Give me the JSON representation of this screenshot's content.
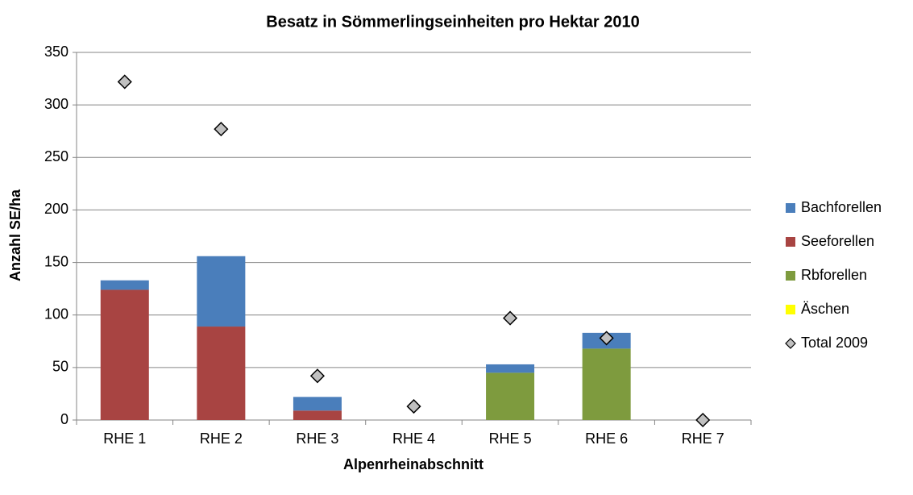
{
  "chart_data": {
    "type": "bar",
    "stacked": true,
    "title": "Besatz in Sömmerlingseinheiten pro Hektar 2010",
    "xlabel": "Alpenrheinabschnitt",
    "ylabel": "Anzahl SE/ha",
    "categories": [
      "RHE 1",
      "RHE 2",
      "RHE 3",
      "RHE 4",
      "RHE 5",
      "RHE 6",
      "RHE 7"
    ],
    "series": [
      {
        "name": "Bachforellen",
        "color": "#4a7ebb",
        "values": [
          9,
          67,
          13,
          0,
          8,
          15,
          0
        ]
      },
      {
        "name": "Seeforellen",
        "color": "#a84442",
        "values": [
          124,
          89,
          9,
          0,
          0,
          0,
          0
        ]
      },
      {
        "name": "Rbforellen",
        "color": "#7e9b3e",
        "values": [
          0,
          0,
          0,
          0,
          45,
          68,
          0
        ]
      },
      {
        "name": "Äschen",
        "color": "#ffff00",
        "values": [
          0,
          0,
          0,
          0,
          0,
          0,
          0
        ]
      },
      {
        "name": "Total 2009",
        "type": "scatter",
        "color": "#c0c0c0",
        "values": [
          322,
          277,
          42,
          13,
          97,
          78,
          0
        ]
      }
    ],
    "ylim": [
      0,
      350
    ],
    "yticks": [
      0,
      50,
      100,
      150,
      200,
      250,
      300,
      350
    ],
    "grid": true,
    "legend": "right"
  }
}
